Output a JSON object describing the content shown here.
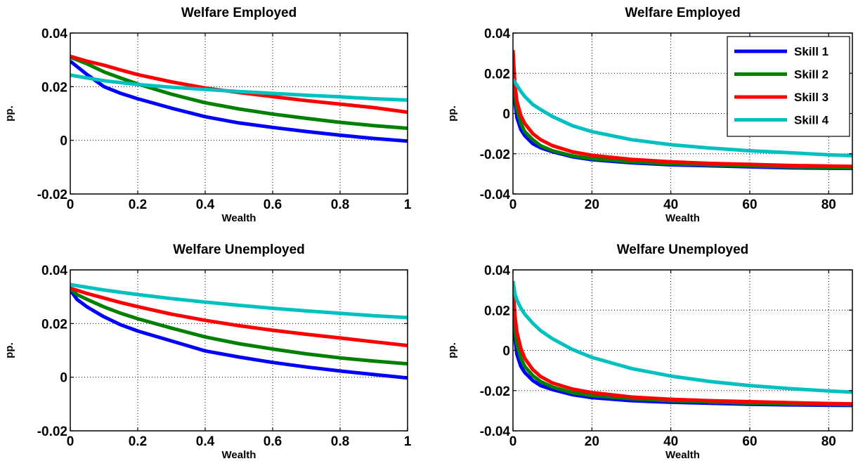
{
  "chart_data": [
    {
      "type": "line",
      "title": "Welfare Employed",
      "xlabel": "Wealth",
      "ylabel": "pp.",
      "xlim": [
        0,
        1
      ],
      "ylim": [
        -0.02,
        0.04
      ],
      "xticks": [
        0,
        0.2,
        0.4,
        0.6,
        0.8,
        1
      ],
      "xtick_labels": [
        "0",
        "0.2",
        "0.4",
        "0.6",
        "0.8",
        "1"
      ],
      "yticks": [
        -0.02,
        0,
        0.02,
        0.04
      ],
      "ytick_labels": [
        "-0.02",
        "0",
        "0.02",
        "0.04"
      ],
      "grid": true,
      "legend": false,
      "series": [
        {
          "name": "Skill 1",
          "color": "#0000ff",
          "x": [
            0,
            0.05,
            0.1,
            0.15,
            0.2,
            0.3,
            0.4,
            0.5,
            0.6,
            0.7,
            0.8,
            0.9,
            1.0
          ],
          "y": [
            0.0295,
            0.0245,
            0.02,
            0.0175,
            0.0155,
            0.012,
            0.0088,
            0.0065,
            0.0048,
            0.0033,
            0.0019,
            0.0007,
            -0.0003
          ]
        },
        {
          "name": "Skill 2",
          "color": "#008000",
          "x": [
            0,
            0.05,
            0.1,
            0.15,
            0.2,
            0.3,
            0.4,
            0.5,
            0.6,
            0.7,
            0.8,
            0.9,
            1.0
          ],
          "y": [
            0.031,
            0.0285,
            0.0255,
            0.0232,
            0.021,
            0.0172,
            0.014,
            0.0117,
            0.0098,
            0.0082,
            0.0067,
            0.0055,
            0.0045
          ]
        },
        {
          "name": "Skill 3",
          "color": "#ff0000",
          "x": [
            0,
            0.05,
            0.1,
            0.15,
            0.2,
            0.3,
            0.4,
            0.5,
            0.6,
            0.7,
            0.8,
            0.9,
            1.0
          ],
          "y": [
            0.0313,
            0.0295,
            0.028,
            0.0262,
            0.0245,
            0.0218,
            0.0195,
            0.0178,
            0.0163,
            0.0148,
            0.0135,
            0.0122,
            0.0105
          ]
        },
        {
          "name": "Skill 4",
          "color": "#00c0c0",
          "x": [
            0,
            0.1,
            0.2,
            0.3,
            0.4,
            0.5,
            0.6,
            0.7,
            0.8,
            0.9,
            1.0
          ],
          "y": [
            0.0243,
            0.0222,
            0.0208,
            0.0198,
            0.019,
            0.0182,
            0.0175,
            0.0168,
            0.0162,
            0.0155,
            0.015
          ]
        }
      ]
    },
    {
      "type": "line",
      "title": "Welfare Employed",
      "xlabel": "Wealth",
      "ylabel": "pp.",
      "xlim": [
        0,
        86
      ],
      "ylim": [
        -0.04,
        0.04
      ],
      "xticks": [
        0,
        20,
        40,
        60,
        80
      ],
      "xtick_labels": [
        "0",
        "20",
        "40",
        "60",
        "80"
      ],
      "yticks": [
        -0.04,
        -0.02,
        0,
        0.02,
        0.04
      ],
      "ytick_labels": [
        "-0.04",
        "-0.02",
        "0",
        "0.02",
        "0.04"
      ],
      "grid": true,
      "legend": true,
      "legend_position": "top-right",
      "series": [
        {
          "name": "Skill 1",
          "color": "#0000ff",
          "x": [
            0,
            0.5,
            1,
            2,
            3,
            5,
            7,
            10,
            15,
            20,
            30,
            40,
            50,
            60,
            70,
            80,
            86
          ],
          "y": [
            0.03,
            0.006,
            -0.002,
            -0.008,
            -0.011,
            -0.015,
            -0.017,
            -0.019,
            -0.0215,
            -0.023,
            -0.0245,
            -0.0255,
            -0.026,
            -0.0265,
            -0.027,
            -0.0272,
            -0.0273
          ]
        },
        {
          "name": "Skill 2",
          "color": "#008000",
          "x": [
            0,
            0.5,
            1,
            2,
            3,
            5,
            7,
            10,
            15,
            20,
            30,
            40,
            50,
            60,
            70,
            80,
            86
          ],
          "y": [
            0.031,
            0.01,
            0.002,
            -0.005,
            -0.009,
            -0.013,
            -0.016,
            -0.0185,
            -0.021,
            -0.0225,
            -0.024,
            -0.025,
            -0.0255,
            -0.026,
            -0.0265,
            -0.0268,
            -0.027
          ]
        },
        {
          "name": "Skill 3",
          "color": "#ff0000",
          "x": [
            0,
            0.5,
            1,
            2,
            3,
            5,
            7,
            10,
            15,
            20,
            30,
            40,
            50,
            60,
            70,
            80,
            86
          ],
          "y": [
            0.0315,
            0.014,
            0.006,
            -0.001,
            -0.005,
            -0.01,
            -0.013,
            -0.016,
            -0.019,
            -0.0208,
            -0.0228,
            -0.024,
            -0.0248,
            -0.0253,
            -0.0258,
            -0.0261,
            -0.0263
          ]
        },
        {
          "name": "Skill 4",
          "color": "#00c0c0",
          "x": [
            0,
            0.5,
            1,
            2,
            3,
            5,
            7,
            10,
            15,
            20,
            30,
            40,
            50,
            60,
            70,
            80,
            86
          ],
          "y": [
            0.017,
            0.0155,
            0.014,
            0.011,
            0.0085,
            0.0045,
            0.002,
            -0.0015,
            -0.006,
            -0.009,
            -0.013,
            -0.0155,
            -0.0172,
            -0.0185,
            -0.0195,
            -0.0205,
            -0.021
          ]
        }
      ]
    },
    {
      "type": "line",
      "title": "Welfare Unemployed",
      "xlabel": "Wealth",
      "ylabel": "pp.",
      "xlim": [
        0,
        1
      ],
      "ylim": [
        -0.02,
        0.04
      ],
      "xticks": [
        0,
        0.2,
        0.4,
        0.6,
        0.8,
        1
      ],
      "xtick_labels": [
        "0",
        "0.2",
        "0.4",
        "0.6",
        "0.8",
        "1"
      ],
      "yticks": [
        -0.02,
        0,
        0.02,
        0.04
      ],
      "ytick_labels": [
        "-0.02",
        "0",
        "0.02",
        "0.04"
      ],
      "grid": true,
      "legend": false,
      "series": [
        {
          "name": "Skill 1",
          "color": "#0000ff",
          "x": [
            0,
            0.02,
            0.05,
            0.1,
            0.15,
            0.2,
            0.3,
            0.4,
            0.5,
            0.6,
            0.7,
            0.8,
            0.9,
            1.0
          ],
          "y": [
            0.0325,
            0.029,
            0.0262,
            0.0225,
            0.0195,
            0.0172,
            0.0135,
            0.0098,
            0.0075,
            0.0055,
            0.0038,
            0.0023,
            0.001,
            -0.0003
          ]
        },
        {
          "name": "Skill 2",
          "color": "#008000",
          "x": [
            0,
            0.02,
            0.05,
            0.1,
            0.15,
            0.2,
            0.3,
            0.4,
            0.5,
            0.6,
            0.7,
            0.8,
            0.9,
            1.0
          ],
          "y": [
            0.0328,
            0.0308,
            0.029,
            0.0262,
            0.0238,
            0.0218,
            0.0183,
            0.015,
            0.0125,
            0.0105,
            0.0087,
            0.0072,
            0.006,
            0.005
          ]
        },
        {
          "name": "Skill 3",
          "color": "#ff0000",
          "x": [
            0,
            0.05,
            0.1,
            0.15,
            0.2,
            0.3,
            0.4,
            0.5,
            0.6,
            0.7,
            0.8,
            0.9,
            1.0
          ],
          "y": [
            0.0332,
            0.0312,
            0.0295,
            0.0278,
            0.0263,
            0.0235,
            0.0212,
            0.0192,
            0.0175,
            0.016,
            0.0146,
            0.0132,
            0.0118
          ]
        },
        {
          "name": "Skill 4",
          "color": "#00c0c0",
          "x": [
            0,
            0.1,
            0.2,
            0.3,
            0.4,
            0.5,
            0.6,
            0.7,
            0.8,
            0.9,
            1.0
          ],
          "y": [
            0.0345,
            0.0325,
            0.0308,
            0.0293,
            0.028,
            0.0268,
            0.0257,
            0.0247,
            0.0238,
            0.0229,
            0.0222
          ]
        }
      ]
    },
    {
      "type": "line",
      "title": "Welfare Unemployed",
      "xlabel": "Wealth",
      "ylabel": "pp.",
      "xlim": [
        0,
        86
      ],
      "ylim": [
        -0.04,
        0.04
      ],
      "xticks": [
        0,
        20,
        40,
        60,
        80
      ],
      "xtick_labels": [
        "0",
        "20",
        "40",
        "60",
        "80"
      ],
      "yticks": [
        -0.04,
        -0.02,
        0,
        0.02,
        0.04
      ],
      "ytick_labels": [
        "-0.04",
        "-0.02",
        "0",
        "0.02",
        "0.04"
      ],
      "grid": true,
      "legend": false,
      "series": [
        {
          "name": "Skill 1",
          "color": "#0000ff",
          "x": [
            0,
            0.5,
            1,
            2,
            3,
            5,
            7,
            10,
            15,
            20,
            30,
            40,
            50,
            60,
            70,
            80,
            86
          ],
          "y": [
            0.032,
            0.006,
            -0.002,
            -0.008,
            -0.011,
            -0.015,
            -0.0175,
            -0.0195,
            -0.022,
            -0.0235,
            -0.025,
            -0.0258,
            -0.0263,
            -0.0268,
            -0.0271,
            -0.0273,
            -0.0274
          ]
        },
        {
          "name": "Skill 2",
          "color": "#008000",
          "x": [
            0,
            0.5,
            1,
            2,
            3,
            5,
            7,
            10,
            15,
            20,
            30,
            40,
            50,
            60,
            70,
            80,
            86
          ],
          "y": [
            0.0325,
            0.011,
            0.003,
            -0.004,
            -0.008,
            -0.0125,
            -0.0155,
            -0.0182,
            -0.021,
            -0.0225,
            -0.024,
            -0.025,
            -0.0256,
            -0.0262,
            -0.0266,
            -0.0268,
            -0.027
          ]
        },
        {
          "name": "Skill 3",
          "color": "#ff0000",
          "x": [
            0,
            0.5,
            1,
            2,
            3,
            5,
            7,
            10,
            15,
            20,
            30,
            40,
            50,
            60,
            70,
            80,
            86
          ],
          "y": [
            0.0335,
            0.017,
            0.009,
            0.001,
            -0.004,
            -0.0095,
            -0.013,
            -0.0162,
            -0.0192,
            -0.021,
            -0.0232,
            -0.0243,
            -0.025,
            -0.0255,
            -0.026,
            -0.0264,
            -0.0266
          ]
        },
        {
          "name": "Skill 4",
          "color": "#00c0c0",
          "x": [
            0,
            0.5,
            1,
            2,
            3,
            5,
            7,
            10,
            15,
            20,
            30,
            40,
            50,
            60,
            70,
            80,
            86
          ],
          "y": [
            0.0345,
            0.028,
            0.025,
            0.021,
            0.018,
            0.0135,
            0.0098,
            0.0058,
            0.0005,
            -0.0035,
            -0.009,
            -0.0128,
            -0.0155,
            -0.0175,
            -0.019,
            -0.0202,
            -0.0208
          ]
        }
      ]
    }
  ]
}
